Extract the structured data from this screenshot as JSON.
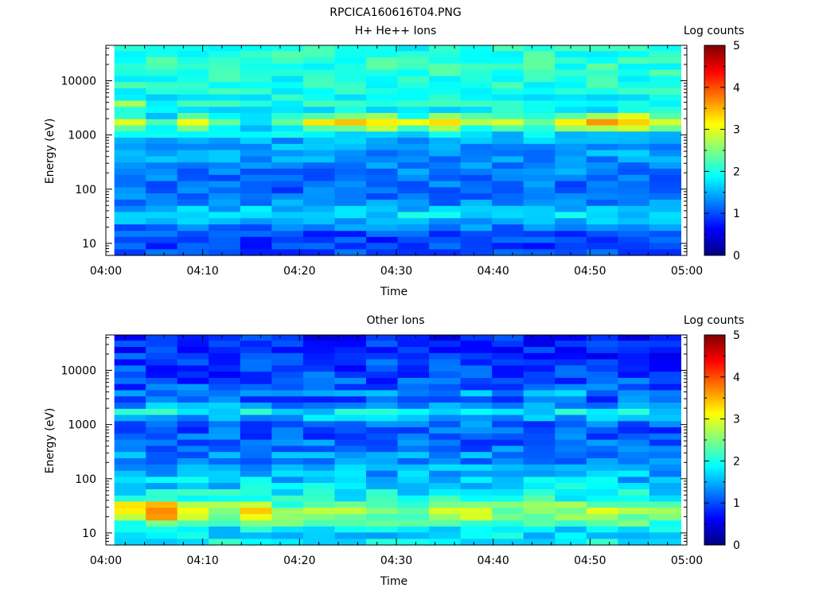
{
  "figure_title": "RPCICA160616T04.PNG",
  "colors": {
    "axis": "#000000",
    "background": "#ffffff",
    "colormap": [
      "#00007f",
      "#0000ff",
      "#007fff",
      "#00ffff",
      "#7fff7f",
      "#ffff00",
      "#ff7f00",
      "#ff0000",
      "#7f0000"
    ]
  },
  "chart_data": [
    {
      "type": "heatmap",
      "title": "H+ He++ Ions",
      "xlabel": "Time",
      "ylabel": "Energy (eV)",
      "colorbar_label": "Log counts",
      "colorbar_ticks": [
        "0",
        "1",
        "2",
        "3",
        "4",
        "5"
      ],
      "zlim": [
        0,
        5
      ],
      "x_ticks": [
        "04:00",
        "04:10",
        "04:20",
        "04:30",
        "04:40",
        "04:50",
        "05:00"
      ],
      "xlim": [
        "04:00",
        "05:00"
      ],
      "y_scale": "log",
      "ylim": [
        6,
        45000
      ],
      "y_ticks": [
        "10",
        "100",
        "1000",
        "10000"
      ],
      "time_bins": [
        "04:02:30",
        "04:05:45",
        "04:09:00",
        "04:12:15",
        "04:15:30",
        "04:18:45",
        "04:22:00",
        "04:25:15",
        "04:28:30",
        "04:31:45",
        "04:35:00",
        "04:38:15",
        "04:41:30",
        "04:44:45",
        "04:48:00",
        "04:51:15",
        "04:54:30",
        "04:57:45"
      ],
      "energy_channels_eV": [
        7,
        9,
        12,
        15,
        20,
        26,
        34,
        44,
        57,
        75,
        97,
        126,
        164,
        214,
        278,
        362,
        470,
        612,
        796,
        1035,
        1346,
        1750,
        2275,
        2960,
        3850,
        5000,
        6500,
        8450,
        11000,
        14300,
        18600,
        24200,
        31500,
        41000
      ],
      "profile": [
        1.05,
        0.95,
        0.9,
        1.0,
        1.2,
        1.45,
        1.75,
        1.55,
        1.3,
        1.15,
        1.1,
        1.15,
        1.2,
        1.25,
        1.3,
        1.35,
        1.4,
        1.45,
        1.5,
        1.7,
        2.4,
        3.0,
        2.3,
        1.9,
        2.0,
        1.9,
        1.95,
        2.0,
        2.0,
        2.05,
        2.1,
        2.1,
        2.05,
        2.0
      ],
      "peak_scale": [
        1.0,
        0.75,
        1.05,
        0.7,
        0.65,
        0.8,
        1.05,
        1.1,
        1.1,
        0.95,
        1.15,
        0.9,
        1.05,
        0.8,
        1.1,
        1.15,
        1.2,
        1.05
      ],
      "peak_channels": [
        20,
        21,
        22
      ],
      "extra_hot": [
        {
          "bin": 0,
          "channel": 24,
          "value": 2.7
        }
      ],
      "noise_seed": 7,
      "noise_amp": 0.28
    },
    {
      "type": "heatmap",
      "title": "Other Ions",
      "xlabel": "Time",
      "ylabel": "Energy (eV)",
      "colorbar_label": "Log counts",
      "colorbar_ticks": [
        "0",
        "1",
        "2",
        "3",
        "4",
        "5"
      ],
      "zlim": [
        0,
        5
      ],
      "x_ticks": [
        "04:00",
        "04:10",
        "04:20",
        "04:30",
        "04:40",
        "04:50",
        "05:00"
      ],
      "xlim": [
        "04:00",
        "05:00"
      ],
      "y_scale": "log",
      "ylim": [
        6,
        45000
      ],
      "y_ticks": [
        "10",
        "100",
        "1000",
        "10000"
      ],
      "time_bins": [
        "04:02:30",
        "04:05:45",
        "04:09:00",
        "04:12:15",
        "04:15:30",
        "04:18:45",
        "04:22:00",
        "04:25:15",
        "04:28:30",
        "04:31:45",
        "04:35:00",
        "04:38:15",
        "04:41:30",
        "04:44:45",
        "04:48:00",
        "04:51:15",
        "04:54:30",
        "04:57:45"
      ],
      "energy_channels_eV": [
        7,
        9,
        12,
        15,
        20,
        26,
        34,
        44,
        57,
        75,
        97,
        126,
        164,
        214,
        278,
        362,
        470,
        612,
        796,
        1035,
        1346,
        1750,
        2275,
        2960,
        3850,
        5000,
        6500,
        8450,
        11000,
        14300,
        18600,
        24200,
        31500,
        41000
      ],
      "profile": [
        1.85,
        1.75,
        1.8,
        2.2,
        2.6,
        2.75,
        2.45,
        2.0,
        1.85,
        1.7,
        1.6,
        1.5,
        1.4,
        1.35,
        1.3,
        1.2,
        1.15,
        1.1,
        1.05,
        1.15,
        1.5,
        1.85,
        1.4,
        1.1,
        1.4,
        1.05,
        1.0,
        0.95,
        0.9,
        0.9,
        0.85,
        0.85,
        0.8,
        0.75
      ],
      "peak_scale": [
        1.2,
        1.35,
        1.0,
        1.0,
        1.25,
        0.9,
        0.9,
        0.95,
        0.95,
        0.95,
        1.0,
        1.0,
        0.95,
        1.0,
        1.0,
        1.0,
        0.95,
        0.9
      ],
      "peak_channels": [
        4,
        5,
        6
      ],
      "extra_hot": [],
      "noise_seed": 13,
      "noise_amp": 0.35
    }
  ]
}
